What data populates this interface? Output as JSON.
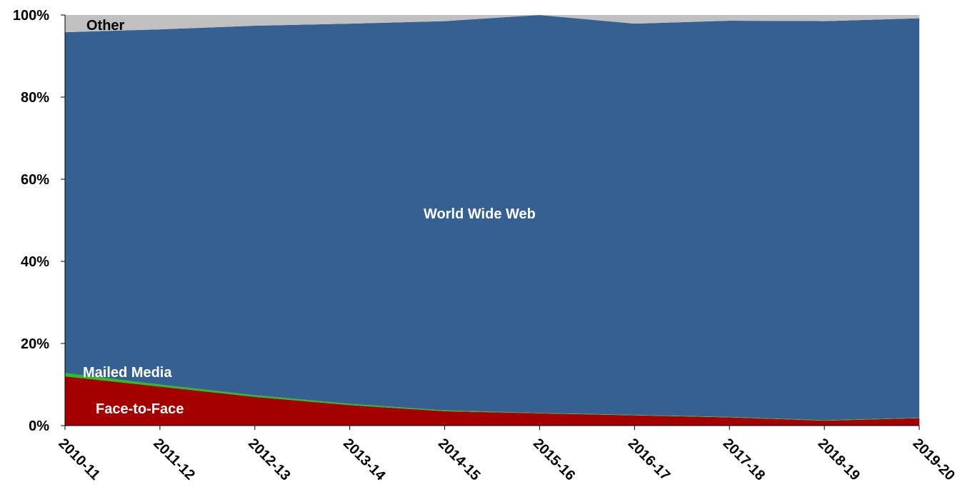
{
  "chart_data": {
    "type": "area",
    "stacked": true,
    "normalized": true,
    "categories": [
      "2010-11",
      "2011-12",
      "2012-13",
      "2013-14",
      "2014-15",
      "2015-16",
      "2016-17",
      "2017-18",
      "2018-19",
      "2019-20"
    ],
    "series": [
      {
        "name": "Face-to-Face",
        "color": "#A50000",
        "values": [
          12,
          9.5,
          7,
          5,
          3.5,
          3,
          2.5,
          2,
          1.2,
          1.8
        ]
      },
      {
        "name": "Mailed Media",
        "color": "#22C222",
        "values": [
          0.8,
          0.5,
          0.4,
          0.3,
          0.2,
          0.1,
          0.1,
          0.1,
          0.1,
          0.1
        ]
      },
      {
        "name": "World Wide Web",
        "color": "#366092",
        "values": [
          83,
          86.5,
          90,
          92.6,
          94.8,
          96.9,
          95.3,
          96.5,
          97.2,
          97.3
        ]
      },
      {
        "name": "Other",
        "color": "#C0C0C0",
        "values": [
          4.2,
          3.5,
          2.6,
          2.1,
          1.5,
          0,
          2.1,
          1.4,
          1.5,
          0.8
        ]
      }
    ],
    "ylim": [
      0,
      100
    ],
    "yticks": [
      "0%",
      "20%",
      "40%",
      "60%",
      "80%",
      "100%"
    ],
    "xlabel": "",
    "ylabel": "",
    "title": "",
    "grid": false,
    "legend": "none (series labeled directly on areas)"
  }
}
